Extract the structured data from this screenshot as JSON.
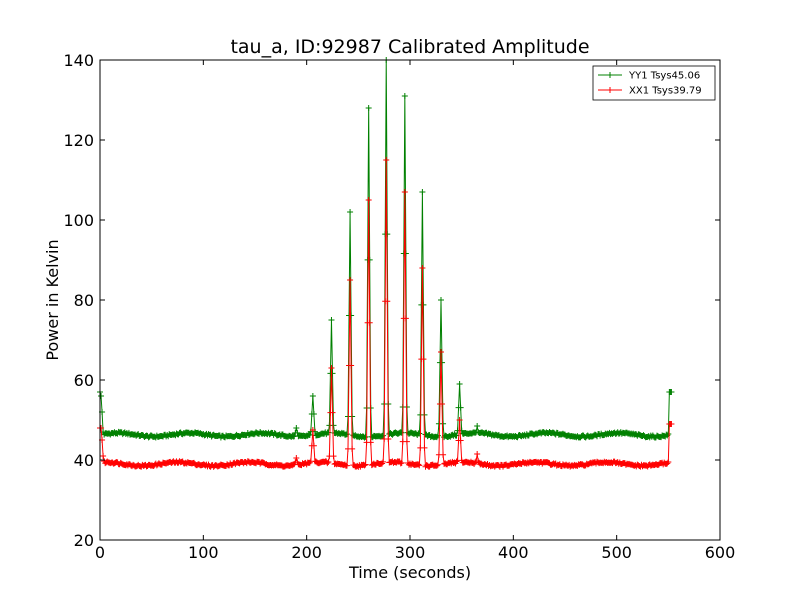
{
  "chart_data": {
    "type": "line",
    "title": "tau_a, ID:92987 Calibrated Amplitude",
    "xlabel": "Time (seconds)",
    "ylabel": "Power in Kelvin",
    "xlim": [
      0,
      600
    ],
    "ylim": [
      20,
      140
    ],
    "xticks": [
      0,
      100,
      200,
      300,
      400,
      500,
      600
    ],
    "yticks": [
      20,
      40,
      60,
      80,
      100,
      120,
      140
    ],
    "grid": false,
    "legend_position": "top-right",
    "colors": {
      "YY1": "#008000",
      "XX1": "#ff0000"
    },
    "marker": "plus",
    "series": [
      {
        "name": "YY1 Tsys45.06",
        "color": "#008000",
        "baseline": 46.3,
        "start": [
          [
            0,
            57
          ],
          [
            1,
            56
          ],
          [
            2,
            52
          ],
          [
            3,
            47
          ]
        ],
        "end": [
          [
            550,
            46.5
          ],
          [
            551,
            57
          ],
          [
            552,
            57
          ],
          [
            553,
            57
          ]
        ],
        "bumps": [
          [
            190,
            48
          ],
          [
            365,
            48.5
          ]
        ],
        "peaks": [
          [
            206,
            56
          ],
          [
            224,
            75
          ],
          [
            242,
            102
          ],
          [
            260,
            128
          ],
          [
            277,
            140
          ],
          [
            295,
            131
          ],
          [
            312,
            107
          ],
          [
            330,
            80
          ],
          [
            348,
            59
          ]
        ]
      },
      {
        "name": "XX1 Tsys39.79",
        "color": "#ff0000",
        "baseline": 39.0,
        "start": [
          [
            0,
            48
          ],
          [
            1,
            48
          ],
          [
            2,
            45
          ],
          [
            3,
            41
          ]
        ],
        "end": [
          [
            550,
            39.5
          ],
          [
            551,
            49
          ],
          [
            552,
            49
          ],
          [
            553,
            49
          ]
        ],
        "bumps": [
          [
            190,
            40.5
          ],
          [
            365,
            41.5
          ]
        ],
        "peaks": [
          [
            206,
            47.5
          ],
          [
            224,
            63
          ],
          [
            242,
            85
          ],
          [
            260,
            105
          ],
          [
            277,
            115
          ],
          [
            295,
            107
          ],
          [
            312,
            88
          ],
          [
            330,
            67
          ],
          [
            348,
            50
          ]
        ]
      }
    ]
  }
}
